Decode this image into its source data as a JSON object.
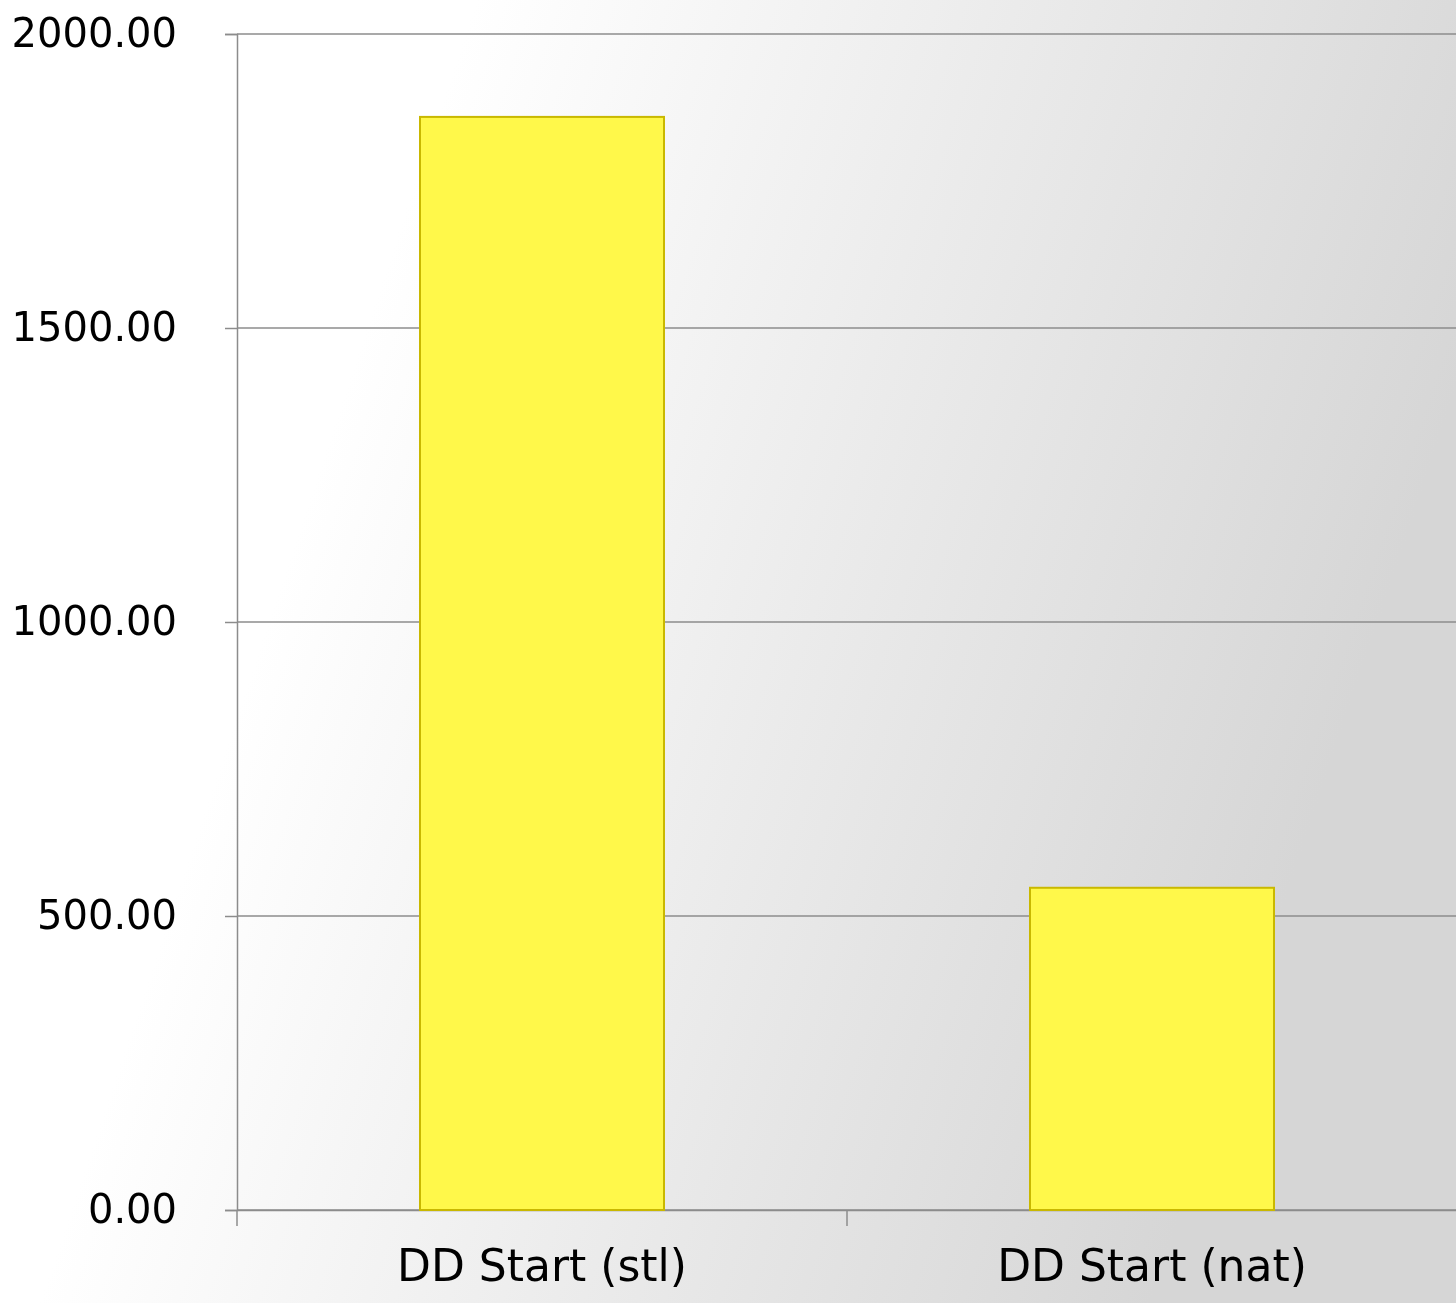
{
  "chart_data": {
    "type": "bar",
    "categories": [
      "DD Start (stl)",
      "DD Start (nat)"
    ],
    "values": [
      1859,
      548
    ],
    "color": "#fff84a",
    "ylim": [
      0,
      2000
    ],
    "yticks": [
      {
        "value": 0,
        "label": "0.00"
      },
      {
        "value": 500,
        "label": "500.00"
      },
      {
        "value": 1000,
        "label": "1000.00"
      },
      {
        "value": 1500,
        "label": "1500.00"
      },
      {
        "value": 2000,
        "label": "2000.00"
      }
    ],
    "grid": "y"
  }
}
